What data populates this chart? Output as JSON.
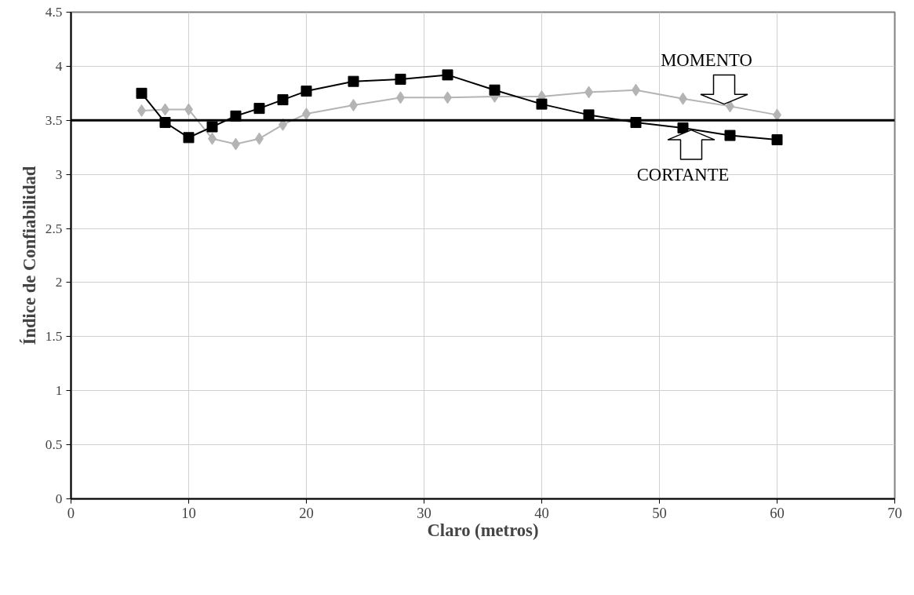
{
  "chart_data": {
    "type": "line",
    "xlabel": "Claro (metros)",
    "ylabel": "Índice de Confiabilidad",
    "series": [
      {
        "color": "#b4b4b4",
        "marker": "diamond",
        "x": [
          6,
          8,
          10,
          12,
          14,
          16,
          18,
          20,
          24,
          28,
          32,
          36,
          40,
          44,
          48,
          52,
          56,
          60
        ],
        "values": [
          3.59,
          3.6,
          3.6,
          3.33,
          3.28,
          3.33,
          3.46,
          3.56,
          3.64,
          3.71,
          3.71,
          3.72,
          3.72,
          3.76,
          3.78,
          3.7,
          3.63,
          3.55
        ]
      },
      {
        "color": "#000000",
        "marker": "square",
        "x": [
          6,
          8,
          10,
          12,
          14,
          16,
          18,
          20,
          24,
          28,
          32,
          36,
          40,
          44,
          48,
          52,
          56,
          60
        ],
        "values": [
          3.75,
          3.48,
          3.34,
          3.44,
          3.54,
          3.61,
          3.69,
          3.77,
          3.86,
          3.88,
          3.92,
          3.78,
          3.65,
          3.55,
          3.48,
          3.43,
          3.36,
          3.32
        ]
      }
    ],
    "ref_lines": [
      {
        "axis": "y",
        "value": 3.5,
        "color": "#000000"
      }
    ],
    "annotations": [
      {
        "text": "MOMENTO",
        "x": 56,
        "y": 3.63
      },
      {
        "text": "CORTANTE",
        "x": 52,
        "y": 3.43
      }
    ],
    "xlim": [
      0,
      70
    ],
    "xticks": [
      0,
      10,
      20,
      30,
      40,
      50,
      60,
      70
    ],
    "ylim": [
      0,
      4.5
    ],
    "yticks": [
      0,
      0.5,
      1,
      1.5,
      2,
      2.5,
      3,
      3.5,
      4,
      4.5
    ],
    "grid": true
  }
}
